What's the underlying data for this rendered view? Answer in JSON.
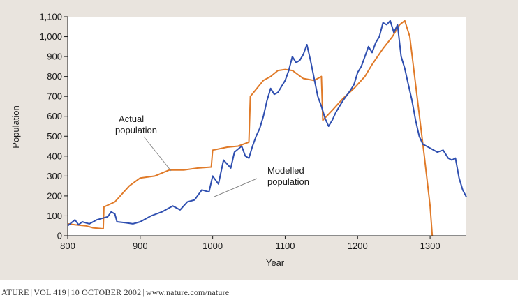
{
  "chart_data": {
    "type": "line",
    "xlabel": "Year",
    "ylabel": "Population",
    "xlim": [
      800,
      1350
    ],
    "ylim": [
      0,
      1100
    ],
    "xticks": [
      "800",
      "900",
      "1000",
      "1100",
      "1200",
      "1300"
    ],
    "yticks": [
      "0",
      "100",
      "200",
      "300",
      "400",
      "500",
      "600",
      "700",
      "800",
      "900",
      "1,000",
      "1,100"
    ],
    "grid": false,
    "series": [
      {
        "name": "Actual population",
        "color": "#e07a28",
        "points": [
          [
            800,
            60
          ],
          [
            810,
            55
          ],
          [
            825,
            50
          ],
          [
            835,
            40
          ],
          [
            849,
            35
          ],
          [
            850,
            145
          ],
          [
            865,
            170
          ],
          [
            885,
            250
          ],
          [
            900,
            290
          ],
          [
            920,
            300
          ],
          [
            940,
            330
          ],
          [
            960,
            330
          ],
          [
            980,
            340
          ],
          [
            998,
            345
          ],
          [
            1000,
            430
          ],
          [
            1020,
            445
          ],
          [
            1035,
            450
          ],
          [
            1050,
            470
          ],
          [
            1052,
            700
          ],
          [
            1070,
            780
          ],
          [
            1080,
            800
          ],
          [
            1090,
            830
          ],
          [
            1100,
            835
          ],
          [
            1110,
            830
          ],
          [
            1125,
            790
          ],
          [
            1140,
            780
          ],
          [
            1150,
            800
          ],
          [
            1152,
            580
          ],
          [
            1165,
            630
          ],
          [
            1180,
            690
          ],
          [
            1195,
            740
          ],
          [
            1210,
            800
          ],
          [
            1220,
            860
          ],
          [
            1235,
            940
          ],
          [
            1248,
            1000
          ],
          [
            1258,
            1060
          ],
          [
            1265,
            1080
          ],
          [
            1272,
            1000
          ],
          [
            1282,
            700
          ],
          [
            1292,
            400
          ],
          [
            1300,
            150
          ],
          [
            1303,
            0
          ]
        ]
      },
      {
        "name": "Modelled population",
        "color": "#2f4fb0",
        "points": [
          [
            800,
            50
          ],
          [
            805,
            65
          ],
          [
            810,
            80
          ],
          [
            815,
            55
          ],
          [
            820,
            70
          ],
          [
            830,
            60
          ],
          [
            840,
            80
          ],
          [
            850,
            90
          ],
          [
            855,
            95
          ],
          [
            860,
            120
          ],
          [
            865,
            110
          ],
          [
            868,
            70
          ],
          [
            880,
            65
          ],
          [
            890,
            60
          ],
          [
            900,
            70
          ],
          [
            915,
            100
          ],
          [
            930,
            120
          ],
          [
            945,
            150
          ],
          [
            955,
            130
          ],
          [
            965,
            170
          ],
          [
            975,
            180
          ],
          [
            985,
            230
          ],
          [
            995,
            220
          ],
          [
            1000,
            300
          ],
          [
            1008,
            260
          ],
          [
            1015,
            380
          ],
          [
            1025,
            340
          ],
          [
            1030,
            420
          ],
          [
            1040,
            450
          ],
          [
            1045,
            400
          ],
          [
            1050,
            390
          ],
          [
            1055,
            450
          ],
          [
            1060,
            500
          ],
          [
            1065,
            540
          ],
          [
            1070,
            600
          ],
          [
            1075,
            680
          ],
          [
            1080,
            740
          ],
          [
            1085,
            710
          ],
          [
            1090,
            720
          ],
          [
            1095,
            750
          ],
          [
            1100,
            780
          ],
          [
            1105,
            830
          ],
          [
            1110,
            900
          ],
          [
            1115,
            870
          ],
          [
            1120,
            880
          ],
          [
            1125,
            910
          ],
          [
            1130,
            960
          ],
          [
            1135,
            880
          ],
          [
            1140,
            790
          ],
          [
            1145,
            700
          ],
          [
            1150,
            650
          ],
          [
            1155,
            590
          ],
          [
            1160,
            550
          ],
          [
            1165,
            580
          ],
          [
            1170,
            620
          ],
          [
            1180,
            680
          ],
          [
            1190,
            730
          ],
          [
            1195,
            760
          ],
          [
            1200,
            820
          ],
          [
            1205,
            850
          ],
          [
            1210,
            900
          ],
          [
            1215,
            950
          ],
          [
            1220,
            920
          ],
          [
            1225,
            970
          ],
          [
            1230,
            1000
          ],
          [
            1235,
            1070
          ],
          [
            1240,
            1060
          ],
          [
            1245,
            1080
          ],
          [
            1250,
            1020
          ],
          [
            1255,
            1060
          ],
          [
            1260,
            900
          ],
          [
            1265,
            840
          ],
          [
            1270,
            760
          ],
          [
            1275,
            680
          ],
          [
            1280,
            580
          ],
          [
            1285,
            500
          ],
          [
            1290,
            460
          ],
          [
            1295,
            450
          ],
          [
            1300,
            440
          ],
          [
            1310,
            420
          ],
          [
            1318,
            430
          ],
          [
            1325,
            390
          ],
          [
            1330,
            380
          ],
          [
            1335,
            390
          ],
          [
            1340,
            290
          ],
          [
            1345,
            230
          ],
          [
            1350,
            195
          ]
        ]
      }
    ],
    "annotations": [
      {
        "lines": [
          "Actual",
          "population"
        ]
      },
      {
        "lines": [
          "Modelled",
          "population"
        ]
      }
    ]
  },
  "footer": {
    "journal": "ATURE",
    "volume": "VOL 419",
    "date": "10 OCTOBER 2002",
    "url": "www.nature.com/nature"
  }
}
